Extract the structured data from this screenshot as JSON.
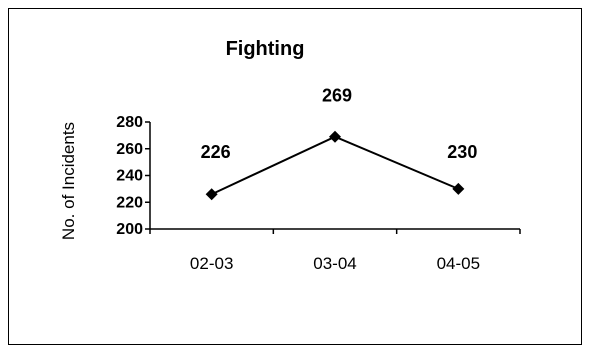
{
  "chart_data": {
    "type": "line",
    "title": "Fighting",
    "xlabel": "",
    "ylabel": "No. of Incidents",
    "categories": [
      "02-03",
      "03-04",
      "04-05"
    ],
    "series": [
      {
        "values": [
          226,
          269,
          230
        ],
        "color": "#000000",
        "marker": "diamond"
      }
    ],
    "ylim": [
      200,
      280
    ],
    "yticks": [
      "200",
      "220",
      "240",
      "260",
      "280"
    ],
    "data_labels": [
      "226",
      "269",
      "230"
    ],
    "grid": false,
    "legend": "none"
  }
}
